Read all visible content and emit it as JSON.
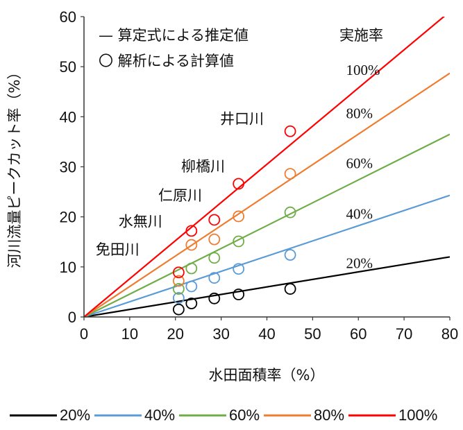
{
  "chart_data": {
    "type": "line",
    "xlabel": "水田面積率（%）",
    "ylabel": "河川流量ピークカット率（%）",
    "xlim": [
      0,
      80
    ],
    "ylim": [
      0,
      60
    ],
    "xticks": [
      "0",
      "10",
      "20",
      "30",
      "40",
      "50",
      "60",
      "70",
      "80"
    ],
    "yticks": [
      "0",
      "10",
      "20",
      "30",
      "40",
      "50",
      "60"
    ],
    "grid": false,
    "legend_lines": "— 算定式による推定値",
    "legend_circles": "〇 解析による計算値",
    "rate_header": "実施率",
    "series": [
      {
        "name": "20%",
        "color": "#000000",
        "label": "20%",
        "line": [
          [
            0,
            0
          ],
          [
            80,
            12
          ]
        ],
        "points": [
          [
            20.7,
            1.5
          ],
          [
            23.5,
            2.7
          ],
          [
            28.5,
            3.7
          ],
          [
            33.8,
            4.5
          ],
          [
            45.1,
            5.6
          ]
        ]
      },
      {
        "name": "40%",
        "color": "#5b9bd5",
        "label": "40%",
        "line": [
          [
            0,
            0
          ],
          [
            80,
            24.3
          ]
        ],
        "points": [
          [
            20.7,
            3.8
          ],
          [
            23.5,
            6.1
          ],
          [
            28.5,
            7.8
          ],
          [
            33.8,
            9.6
          ],
          [
            45.1,
            12.4
          ]
        ]
      },
      {
        "name": "60%",
        "color": "#70ad47",
        "label": "60%",
        "line": [
          [
            0,
            0
          ],
          [
            80,
            36.5
          ]
        ],
        "points": [
          [
            20.7,
            5.6
          ],
          [
            23.5,
            9.7
          ],
          [
            28.5,
            11.8
          ],
          [
            33.8,
            15.1
          ],
          [
            45.1,
            20.9
          ]
        ]
      },
      {
        "name": "80%",
        "color": "#ed7d31",
        "label": "80%",
        "line": [
          [
            0,
            0
          ],
          [
            80,
            48.7
          ]
        ],
        "points": [
          [
            20.7,
            7.2
          ],
          [
            23.5,
            14.4
          ],
          [
            28.5,
            15.5
          ],
          [
            33.8,
            20.1
          ],
          [
            45.1,
            28.6
          ]
        ]
      },
      {
        "name": "100%",
        "color": "#ff0000",
        "label": "100%",
        "line": [
          [
            0,
            0
          ],
          [
            80,
            61
          ]
        ],
        "points": [
          [
            20.7,
            8.9
          ],
          [
            23.5,
            17.2
          ],
          [
            28.5,
            19.4
          ],
          [
            33.8,
            26.6
          ],
          [
            45.1,
            37.1
          ]
        ]
      }
    ],
    "annotations": [
      {
        "text": "免田川",
        "x": 6.8,
        "y": 13.6
      },
      {
        "text": "水無川",
        "x": 11.8,
        "y": 19.2
      },
      {
        "text": "仁原川",
        "x": 20.5,
        "y": 24.4
      },
      {
        "text": "柳橋川",
        "x": 25.5,
        "y": 30.2
      },
      {
        "text": "井口川",
        "x": 34.0,
        "y": 39.7
      }
    ]
  }
}
